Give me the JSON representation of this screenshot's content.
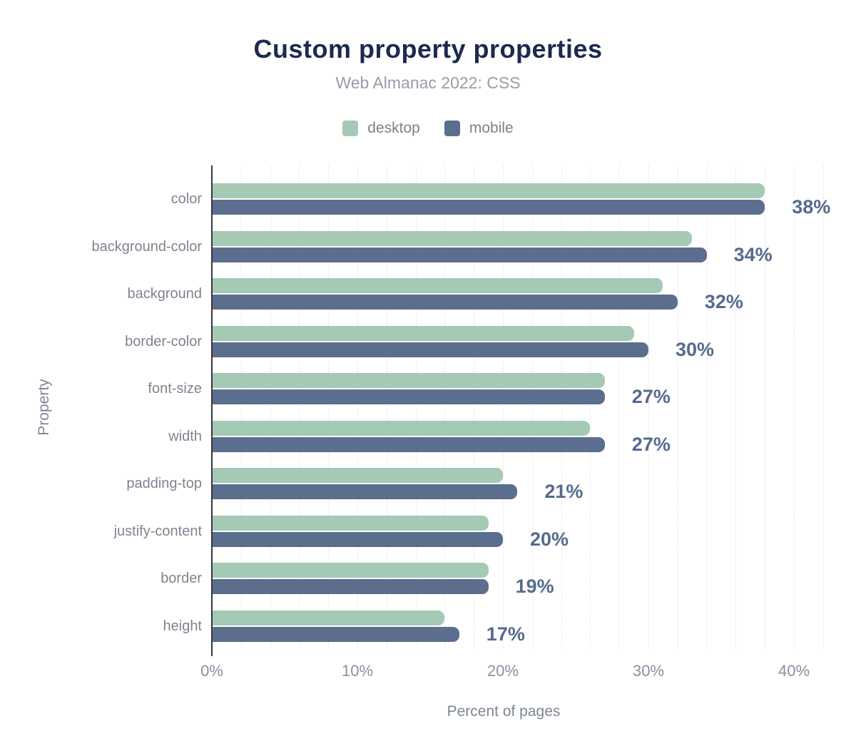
{
  "header": {
    "title": "Custom property properties",
    "subtitle": "Web Almanac 2022: CSS"
  },
  "legend": [
    {
      "label": "desktop",
      "color": "#a4c9b5"
    },
    {
      "label": "mobile",
      "color": "#5c6e8e"
    }
  ],
  "chart_data": {
    "type": "bar",
    "orientation": "horizontal",
    "title": "Custom property properties",
    "subtitle": "Web Almanac 2022: CSS",
    "categories": [
      "color",
      "background-color",
      "background",
      "border-color",
      "font-size",
      "width",
      "padding-top",
      "justify-content",
      "border",
      "height"
    ],
    "series": [
      {
        "name": "desktop",
        "color": "#a4c9b5",
        "values": [
          38,
          33,
          31,
          29,
          27,
          26,
          20,
          19,
          19,
          16
        ]
      },
      {
        "name": "mobile",
        "color": "#5c6e8e",
        "values": [
          38,
          34,
          32,
          30,
          27,
          27,
          21,
          20,
          19,
          17
        ]
      }
    ],
    "bar_labels": [
      "38%",
      "34%",
      "32%",
      "30%",
      "27%",
      "27%",
      "21%",
      "20%",
      "19%",
      "17%"
    ],
    "bar_label_series": "mobile",
    "xlabel": "Percent of pages",
    "ylabel": "Property",
    "x_ticks": [
      "0%",
      "10%",
      "20%",
      "30%",
      "40%"
    ],
    "x_tick_values": [
      0,
      10,
      20,
      30,
      40
    ],
    "xlim": [
      0,
      42.5
    ],
    "grid": "vertical, dotted, every 2%",
    "legend_position": "top-center",
    "colors": {
      "title": "#1b2a4e",
      "subtitle": "#979da6",
      "axis_text": "#8a909e",
      "category_text": "#7e848e",
      "bar_label_text": "#566a8e",
      "axis_line": "#35383d",
      "gridline": "#dfe1e8",
      "background": "#ffffff"
    }
  }
}
